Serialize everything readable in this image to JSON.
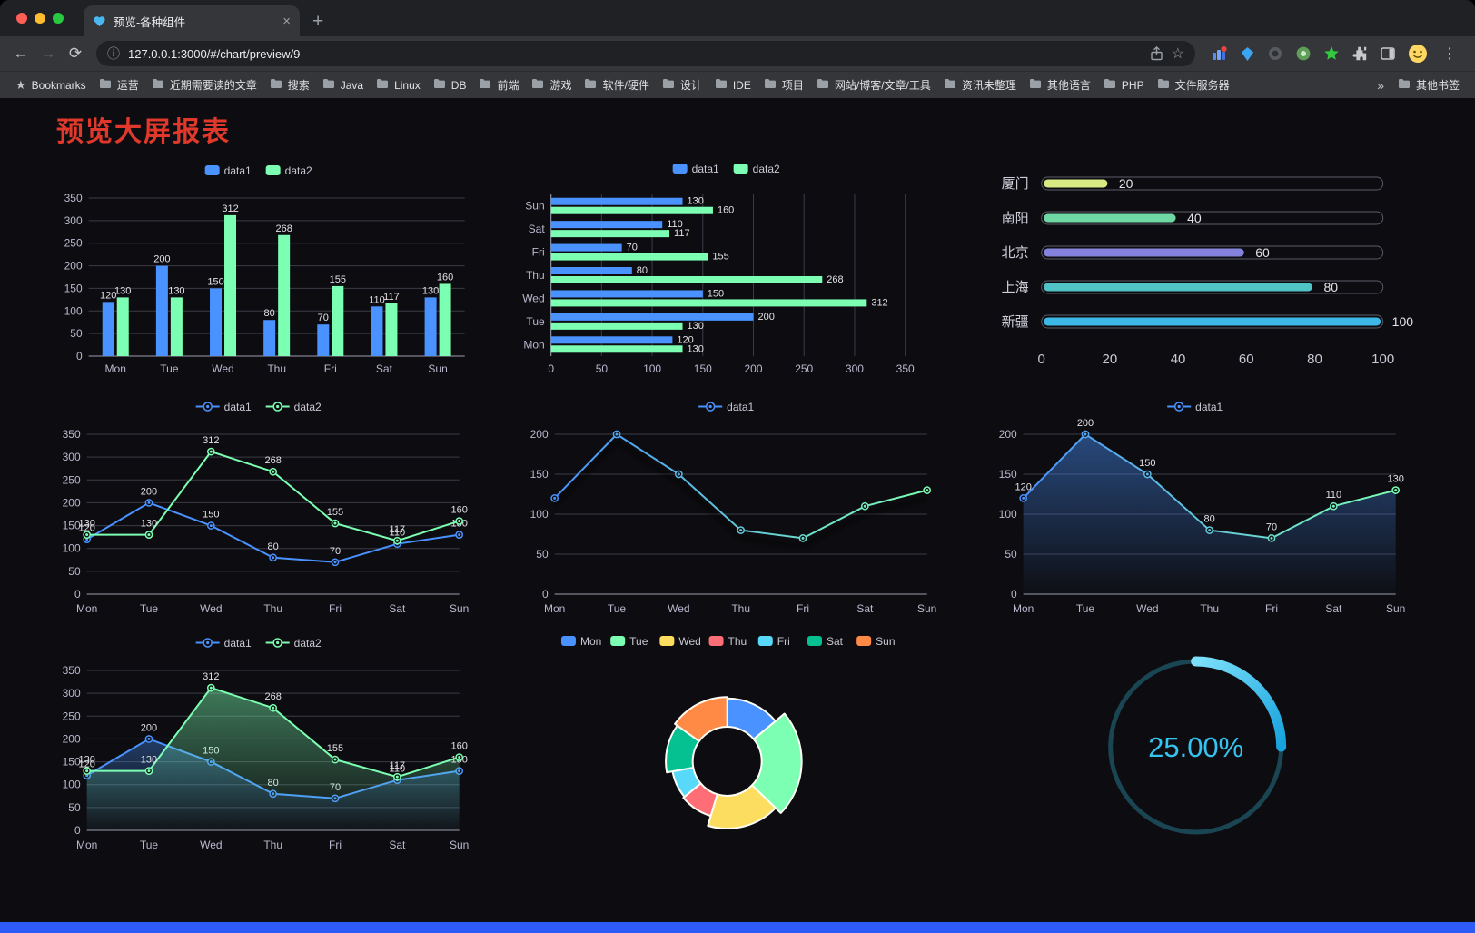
{
  "browser": {
    "tab": {
      "title": "预览-各种组件"
    },
    "url": "127.0.0.1:3000/#/chart/preview/9",
    "bookmarks_bar": {
      "label": "Bookmarks",
      "folders": [
        "运营",
        "近期需要读的文章",
        "搜索",
        "Java",
        "Linux",
        "DB",
        "前端",
        "游戏",
        "软件/硬件",
        "设计",
        "IDE",
        "项目",
        "网站/博客/文章/工具",
        "资讯未整理",
        "其他语言",
        "PHP",
        "文件服务器"
      ],
      "overflow": "»",
      "other": "其他书签"
    }
  },
  "page": {
    "title": "预览大屏报表",
    "title_color": "#e0392b",
    "background": "#0d0d11",
    "footer_color": "#2e5bf6"
  },
  "chart_data": [
    {
      "name": "grouped-bar",
      "type": "bar",
      "categories": [
        "Mon",
        "Tue",
        "Wed",
        "Thu",
        "Fri",
        "Sat",
        "Sun"
      ],
      "series": [
        {
          "name": "data1",
          "color": "#4992ff",
          "values": [
            120,
            200,
            150,
            80,
            70,
            110,
            130
          ]
        },
        {
          "name": "data2",
          "color": "#7cffb2",
          "values": [
            130,
            130,
            312,
            268,
            155,
            117,
            160
          ]
        }
      ],
      "ylim": [
        0,
        350
      ],
      "step": 50,
      "legend_position": "top"
    },
    {
      "name": "horizontal-bar",
      "type": "hbar",
      "categories": [
        "Mon",
        "Tue",
        "Wed",
        "Thu",
        "Fri",
        "Sat",
        "Sun"
      ],
      "series": [
        {
          "name": "data1",
          "color": "#4992ff",
          "values": [
            120,
            200,
            150,
            80,
            70,
            110,
            130
          ]
        },
        {
          "name": "data2",
          "color": "#7cffb2",
          "values": [
            130,
            130,
            312,
            268,
            155,
            117,
            160
          ]
        }
      ],
      "xlim": [
        0,
        350
      ],
      "step": 50,
      "legend_position": "top"
    },
    {
      "name": "capsule-progress",
      "type": "capsule",
      "rows": [
        {
          "label": "厦门",
          "value": 20,
          "color": "#d6e982"
        },
        {
          "label": "南阳",
          "value": 40,
          "color": "#6fd7a4"
        },
        {
          "label": "北京",
          "value": 60,
          "color": "#8582dd"
        },
        {
          "label": "上海",
          "value": 80,
          "color": "#50c3c6"
        },
        {
          "label": "新疆",
          "value": 100,
          "color": "#3db7e6"
        }
      ],
      "xlim": [
        0,
        100
      ],
      "ticks": [
        0,
        20,
        40,
        60,
        80,
        100
      ]
    },
    {
      "name": "multi-line",
      "type": "line",
      "categories": [
        "Mon",
        "Tue",
        "Wed",
        "Thu",
        "Fri",
        "Sat",
        "Sun"
      ],
      "series": [
        {
          "name": "data1",
          "color": "#4992ff",
          "values": [
            120,
            200,
            150,
            80,
            70,
            110,
            130
          ],
          "labels": true
        },
        {
          "name": "data2",
          "color": "#7cffb2",
          "values": [
            130,
            130,
            312,
            268,
            155,
            117,
            160
          ],
          "labels": true
        }
      ],
      "ylim": [
        0,
        350
      ],
      "step": 50,
      "legend_position": "top"
    },
    {
      "name": "gradient-line",
      "type": "line",
      "categories": [
        "Mon",
        "Tue",
        "Wed",
        "Thu",
        "Fri",
        "Sat",
        "Sun"
      ],
      "series": [
        {
          "name": "data1",
          "gradient": [
            "#4992ff",
            "#7cffb2"
          ],
          "values": [
            120,
            200,
            150,
            80,
            70,
            110,
            130
          ]
        }
      ],
      "ylim": [
        0,
        200
      ],
      "step": 50,
      "shadow": true,
      "legend_position": "top"
    },
    {
      "name": "area-line",
      "type": "line",
      "categories": [
        "Mon",
        "Tue",
        "Wed",
        "Thu",
        "Fri",
        "Sat",
        "Sun"
      ],
      "series": [
        {
          "name": "data1",
          "gradient": [
            "#4992ff",
            "#7cffb2"
          ],
          "values": [
            120,
            200,
            150,
            80,
            70,
            110,
            130
          ],
          "labels": true,
          "area": [
            "rgba(73,146,255,0.45)",
            "rgba(73,146,255,0.02)"
          ]
        }
      ],
      "ylim": [
        0,
        200
      ],
      "step": 50,
      "legend_position": "top"
    },
    {
      "name": "multi-line-area",
      "type": "line",
      "categories": [
        "Mon",
        "Tue",
        "Wed",
        "Thu",
        "Fri",
        "Sat",
        "Sun"
      ],
      "series": [
        {
          "name": "data1",
          "color": "#4992ff",
          "values": [
            120,
            200,
            150,
            80,
            70,
            110,
            130
          ],
          "labels": true,
          "area": [
            "rgba(73,146,255,0.35)",
            "rgba(73,146,255,0.02)"
          ]
        },
        {
          "name": "data2",
          "color": "#7cffb2",
          "values": [
            130,
            130,
            312,
            268,
            155,
            117,
            160
          ],
          "labels": true,
          "area": [
            "rgba(124,255,178,0.45)",
            "rgba(124,255,178,0.02)"
          ]
        }
      ],
      "ylim": [
        0,
        350
      ],
      "step": 50,
      "legend_position": "top"
    },
    {
      "name": "rose-pie",
      "type": "pie",
      "rose": true,
      "categories": [
        "Mon",
        "Tue",
        "Wed",
        "Thu",
        "Fri",
        "Sat",
        "Sun"
      ],
      "values": [
        120,
        200,
        150,
        80,
        70,
        110,
        130
      ],
      "colors": [
        "#4992ff",
        "#7cffb2",
        "#fddd60",
        "#ff6e76",
        "#58d9f9",
        "#05c091",
        "#ff8a45"
      ],
      "legend_position": "top"
    },
    {
      "name": "gauge",
      "type": "gauge",
      "value": 25,
      "label": "25.00%",
      "color_start": "#7ce0f9",
      "color_end": "#17a2dd",
      "track": "#1a4553",
      "text_color": "#35c3f0"
    }
  ]
}
